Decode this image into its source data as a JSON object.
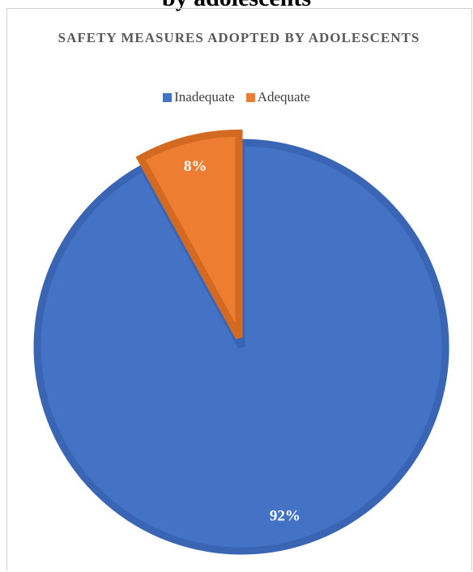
{
  "page": {
    "heading_fragment": "by adolescents"
  },
  "chart_data": {
    "type": "pie",
    "title": "SAFETY MEASURES ADOPTED BY ADOLESCENTS",
    "categories": [
      "Inadequate",
      "Adequate"
    ],
    "values": [
      92,
      8
    ],
    "data_labels": [
      "92%",
      "8%"
    ],
    "colors": [
      "#4472C4",
      "#ED7D31"
    ],
    "border_colors": [
      "#3A65B4",
      "#D46A22"
    ],
    "legend_position": "top",
    "start_angle_deg": 0,
    "direction": "clockwise",
    "exploded_slice": "Adequate"
  }
}
